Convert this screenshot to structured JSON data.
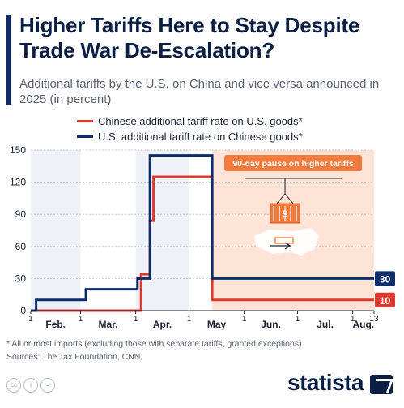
{
  "header": {
    "title": "Higher Tariffs Here to Stay Despite Trade War De-Escalation?",
    "subtitle": "Additional tariffs by the U.S. on China and vice versa announced in 2025 (in percent)"
  },
  "legend": [
    {
      "label": "Chinese additional tariff rate on U.S. goods*",
      "color": "#e03a2f"
    },
    {
      "label": "U.S. additional tariff rate on Chinese goods*",
      "color": "#0b2d6b"
    }
  ],
  "chart_data": {
    "type": "line",
    "x_unit": "date",
    "ylim": [
      0,
      150
    ],
    "yticks": [
      "0",
      "30",
      "60",
      "90",
      "120",
      "150"
    ],
    "month_labels": [
      "Feb.",
      "Mar.",
      "Apr.",
      "May",
      "Jun.",
      "Jul.",
      "Aug."
    ],
    "day_tick_labels": [
      {
        "label": "1",
        "date": "2025-02-01"
      },
      {
        "label": "1",
        "date": "2025-03-01"
      },
      {
        "label": "1",
        "date": "2025-04-01"
      },
      {
        "label": "1",
        "date": "2025-05-01"
      },
      {
        "label": "1",
        "date": "2025-06-01"
      },
      {
        "label": "1",
        "date": "2025-07-01"
      },
      {
        "label": "1",
        "date": "2025-08-01"
      },
      {
        "label": "13",
        "date": "2025-08-13"
      }
    ],
    "series": [
      {
        "name": "Chinese additional tariff rate on U.S. goods*",
        "color": "#e03a2f",
        "points": [
          {
            "x": "2025-02-01",
            "y": 0
          },
          {
            "x": "2025-04-04",
            "y": 0
          },
          {
            "x": "2025-04-04",
            "y": 34
          },
          {
            "x": "2025-04-09",
            "y": 34
          },
          {
            "x": "2025-04-09",
            "y": 84
          },
          {
            "x": "2025-04-11",
            "y": 84
          },
          {
            "x": "2025-04-11",
            "y": 125
          },
          {
            "x": "2025-05-14",
            "y": 125
          },
          {
            "x": "2025-05-14",
            "y": 10
          },
          {
            "x": "2025-08-13",
            "y": 10
          }
        ],
        "end_label": "10"
      },
      {
        "name": "U.S. additional tariff rate on Chinese goods*",
        "color": "#0b2d6b",
        "points": [
          {
            "x": "2025-02-01",
            "y": 0
          },
          {
            "x": "2025-02-04",
            "y": 0
          },
          {
            "x": "2025-02-04",
            "y": 10
          },
          {
            "x": "2025-03-04",
            "y": 10
          },
          {
            "x": "2025-03-04",
            "y": 20
          },
          {
            "x": "2025-04-02",
            "y": 20
          },
          {
            "x": "2025-04-02",
            "y": 30
          },
          {
            "x": "2025-04-09",
            "y": 30
          },
          {
            "x": "2025-04-09",
            "y": 145
          },
          {
            "x": "2025-05-14",
            "y": 145
          },
          {
            "x": "2025-05-14",
            "y": 30
          },
          {
            "x": "2025-08-13",
            "y": 30
          }
        ],
        "end_label": "30"
      }
    ],
    "pause_region": {
      "start": "2025-05-14",
      "end": "2025-08-13",
      "color": "#fde4d6"
    },
    "annotation": "90-day pause on higher tariffs",
    "grid": true
  },
  "footnote": "* All or most imports (excluding those with separate tariffs, granted exceptions)",
  "sources": "Sources: The Tax Foundation, CNN",
  "logo": "statista",
  "icons": {
    "license": [
      "cc-icon",
      "by-icon",
      "nd-icon"
    ],
    "illustration": "shipping-container-usa-map-icon"
  }
}
